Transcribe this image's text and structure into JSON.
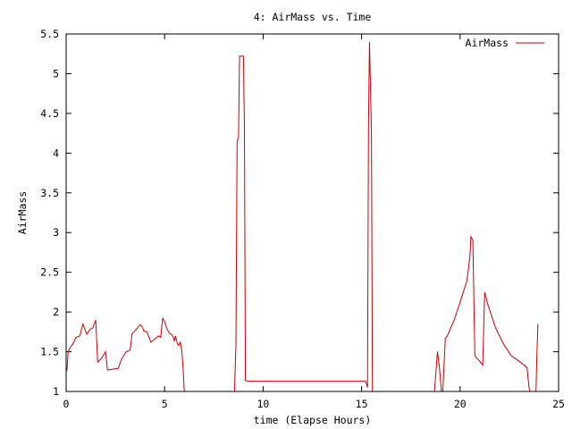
{
  "chart_data": {
    "type": "line",
    "title": "4: AirMass vs. Time",
    "xlabel": "time (Elapse Hours)",
    "ylabel": "AirMass",
    "xlim": [
      0,
      25
    ],
    "ylim": [
      1,
      5.5
    ],
    "xticks": [
      0,
      5,
      10,
      15,
      20,
      25
    ],
    "xtick_labels": [
      "0",
      "5",
      "10",
      "15",
      "20",
      "25"
    ],
    "yticks": [
      1,
      1.5,
      2,
      2.5,
      3,
      3.5,
      4,
      4.5,
      5,
      5.5
    ],
    "ytick_labels": [
      "1",
      "1.5",
      "2",
      "2.5",
      "3",
      "3.5",
      "4",
      "4.5",
      "5",
      "5.5"
    ],
    "grid": false,
    "legend_position": "top-right",
    "series": [
      {
        "name": "AirMass",
        "color": "#cc0000",
        "x": [
          0,
          0.05,
          0.1,
          0.2,
          0.35,
          0.5,
          0.7,
          0.85,
          1.05,
          1.2,
          1.35,
          1.5,
          1.6,
          1.65,
          1.8,
          2.0,
          2.1,
          2.35,
          2.65,
          2.8,
          3.05,
          3.25,
          3.35,
          3.55,
          3.75,
          3.85,
          3.95,
          4.1,
          4.3,
          4.5,
          4.7,
          4.8,
          4.9,
          5.0,
          5.1,
          5.25,
          5.35,
          5.45,
          5.5,
          5.55,
          5.65,
          5.72,
          5.8,
          5.88,
          5.95,
          6.0,
          6.05,
          8.55,
          8.62,
          8.68,
          8.75,
          8.8,
          8.95,
          9.0,
          9.05,
          9.1,
          9.2,
          9.5,
          10.0,
          11.0,
          12.0,
          13.0,
          14.0,
          15.0,
          15.2,
          15.3,
          15.35,
          15.4,
          15.5,
          15.55,
          15.58,
          15.62,
          15.7,
          18.2,
          18.5,
          18.7,
          18.85,
          18.95,
          19.05,
          19.12,
          19.25,
          19.35,
          19.7,
          20.1,
          20.35,
          20.5,
          20.55,
          20.65,
          20.75,
          20.85,
          21.0,
          21.1,
          21.15,
          21.25,
          21.4,
          21.6,
          21.8,
          22.2,
          22.6,
          23.0,
          23.4,
          23.5,
          23.55,
          23.65,
          23.75,
          23.8,
          23.85,
          23.9,
          23.95
        ],
        "y": [
          1.25,
          1.28,
          1.5,
          1.55,
          1.6,
          1.68,
          1.7,
          1.85,
          1.72,
          1.78,
          1.8,
          1.9,
          1.37,
          1.38,
          1.42,
          1.5,
          1.27,
          1.28,
          1.29,
          1.4,
          1.5,
          1.52,
          1.73,
          1.78,
          1.84,
          1.82,
          1.76,
          1.75,
          1.62,
          1.66,
          1.7,
          1.68,
          1.92,
          1.88,
          1.8,
          1.73,
          1.72,
          1.68,
          1.63,
          1.7,
          1.6,
          1.58,
          1.62,
          1.5,
          1.25,
          1.0,
          1.0,
          1.0,
          1.6,
          4.15,
          4.2,
          5.22,
          5.22,
          5.22,
          4.3,
          1.14,
          1.13,
          1.13,
          1.13,
          1.13,
          1.13,
          1.13,
          1.13,
          1.13,
          1.13,
          1.05,
          4.3,
          5.4,
          4.3,
          1.0,
          1.0,
          1.0,
          1.0,
          1.0,
          1.0,
          1.0,
          1.5,
          1.3,
          1.0,
          1.0,
          1.67,
          1.7,
          1.9,
          2.2,
          2.4,
          2.7,
          2.95,
          2.9,
          1.45,
          1.42,
          1.38,
          1.35,
          1.33,
          2.25,
          2.1,
          1.95,
          1.8,
          1.6,
          1.45,
          1.38,
          1.3,
          1.05,
          1.0,
          1.0,
          1.0,
          1.0,
          1.0,
          1.5,
          1.85
        ]
      }
    ]
  }
}
